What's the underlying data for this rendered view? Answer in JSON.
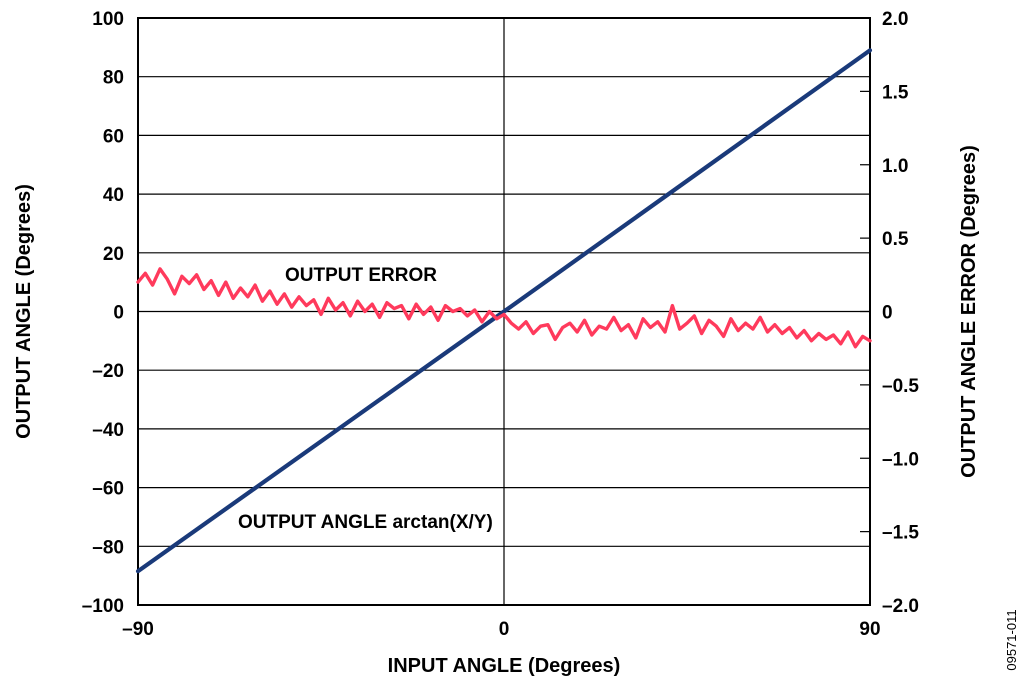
{
  "figure_id": "09571-011",
  "chart_data": {
    "type": "line",
    "xlabel": "INPUT ANGLE (Degrees)",
    "ylabel": "OUTPUT ANGLE (Degrees)",
    "y2label": "OUTPUT ANGLE ERROR (Degrees)",
    "xlim": [
      -90,
      90
    ],
    "ylim": [
      -100,
      100
    ],
    "y2lim": [
      -2.0,
      2.0
    ],
    "x_ticks": [
      "–90",
      "0",
      "90"
    ],
    "y_ticks": [
      "100",
      "80",
      "60",
      "40",
      "20",
      "0",
      "–20",
      "–40",
      "–60",
      "–80",
      "–100"
    ],
    "y2_ticks": [
      "2.0",
      "1.5",
      "1.0",
      "0.5",
      "0",
      "–0.5",
      "–1.0",
      "–1.5",
      "–2.0"
    ],
    "grid": true,
    "annotations": {
      "output_error": "OUTPUT ERROR",
      "output_angle": "OUTPUT ANGLE arctan(X/Y)"
    },
    "series": [
      {
        "name": "OUTPUT ANGLE arctan(X/Y)",
        "axis": "left",
        "color": "#1a3a7a",
        "x": [
          -90,
          0,
          90
        ],
        "y": [
          -88.5,
          0,
          89
        ]
      },
      {
        "name": "OUTPUT ERROR",
        "axis": "right",
        "color": "#ff3a5c",
        "x": [
          -90,
          -88.2,
          -86.4,
          -84.6,
          -82.8,
          -81,
          -79.2,
          -77.4,
          -75.6,
          -73.8,
          -72,
          -70.2,
          -68.4,
          -66.6,
          -64.8,
          -63,
          -61.2,
          -59.4,
          -57.6,
          -55.8,
          -54,
          -52.2,
          -50.4,
          -48.6,
          -46.8,
          -45,
          -43.2,
          -41.4,
          -39.6,
          -37.8,
          -36,
          -34.2,
          -32.4,
          -30.6,
          -28.8,
          -27,
          -25.2,
          -23.4,
          -21.6,
          -19.8,
          -18,
          -16.2,
          -14.4,
          -12.6,
          -10.8,
          -9,
          -7.2,
          -5.4,
          -3.6,
          -1.8,
          0,
          1.8,
          3.6,
          5.4,
          7.2,
          9,
          10.8,
          12.6,
          14.4,
          16.2,
          18,
          19.8,
          21.6,
          23.4,
          25.2,
          27,
          28.8,
          30.6,
          32.4,
          34.2,
          36,
          37.8,
          39.6,
          41.4,
          43.2,
          45,
          46.8,
          48.6,
          50.4,
          52.2,
          54,
          55.8,
          57.6,
          59.4,
          61.2,
          63,
          64.8,
          66.6,
          68.4,
          70.2,
          72,
          73.8,
          75.6,
          77.4,
          79.2,
          81,
          82.8,
          84.6,
          86.4,
          88.2,
          90
        ],
        "y": [
          0.2,
          0.26,
          0.18,
          0.29,
          0.22,
          0.12,
          0.24,
          0.19,
          0.25,
          0.15,
          0.21,
          0.11,
          0.2,
          0.09,
          0.16,
          0.1,
          0.18,
          0.07,
          0.14,
          0.05,
          0.12,
          0.03,
          0.1,
          0.04,
          0.08,
          -0.02,
          0.09,
          0.01,
          0.06,
          -0.03,
          0.07,
          0.0,
          0.05,
          -0.04,
          0.06,
          0.02,
          0.04,
          -0.05,
          0.05,
          -0.02,
          0.03,
          -0.06,
          0.04,
          0.0,
          0.02,
          -0.03,
          0.01,
          -0.07,
          0.0,
          -0.05,
          -0.02,
          -0.08,
          -0.12,
          -0.07,
          -0.15,
          -0.1,
          -0.09,
          -0.19,
          -0.11,
          -0.08,
          -0.14,
          -0.06,
          -0.16,
          -0.1,
          -0.12,
          -0.04,
          -0.13,
          -0.09,
          -0.18,
          -0.05,
          -0.11,
          -0.07,
          -0.14,
          0.04,
          -0.12,
          -0.08,
          -0.03,
          -0.15,
          -0.06,
          -0.1,
          -0.17,
          -0.05,
          -0.13,
          -0.08,
          -0.12,
          -0.04,
          -0.14,
          -0.09,
          -0.15,
          -0.11,
          -0.18,
          -0.13,
          -0.2,
          -0.15,
          -0.19,
          -0.16,
          -0.22,
          -0.14,
          -0.24,
          -0.17,
          -0.2
        ]
      }
    ]
  }
}
